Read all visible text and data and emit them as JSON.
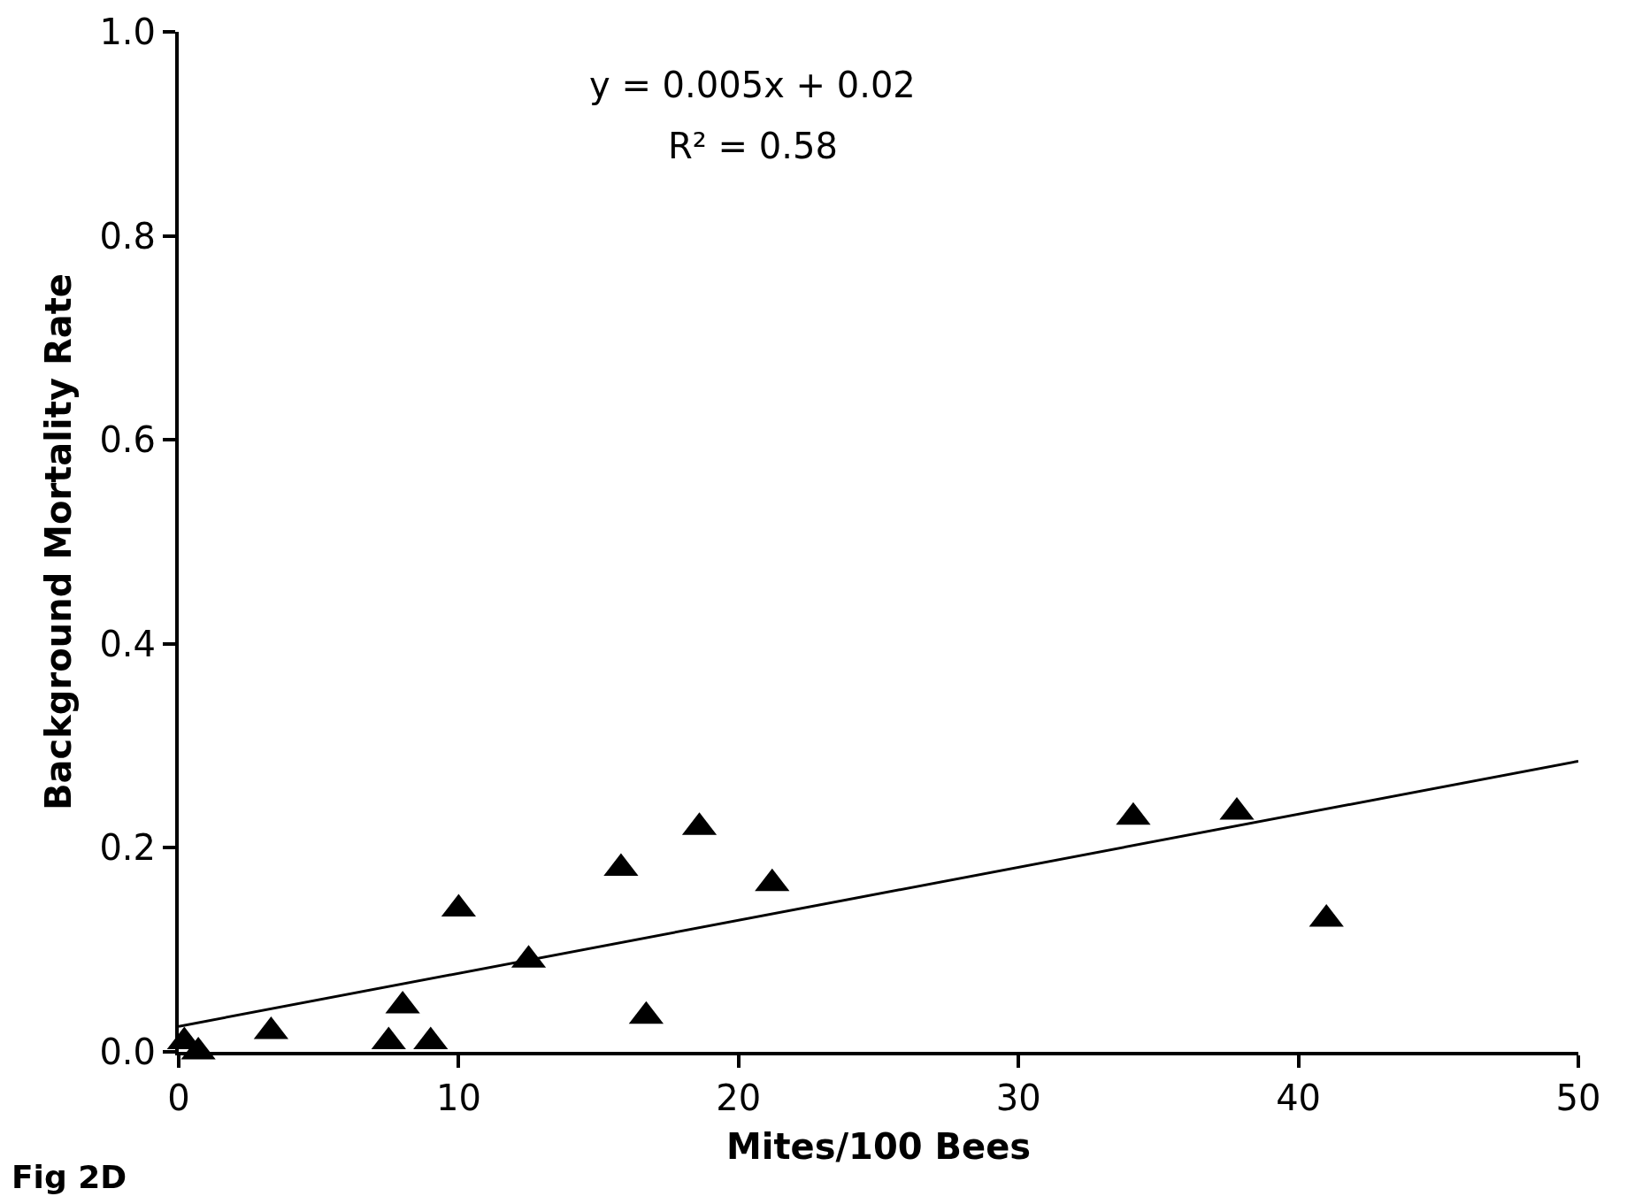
{
  "chart_data": {
    "type": "scatter",
    "xlabel": "Mites/100 Bees",
    "ylabel": "Background Mortality Rate",
    "xlim": [
      0,
      50
    ],
    "xticks": [
      0,
      10,
      20,
      30,
      40,
      50
    ],
    "ylim": [
      0,
      1
    ],
    "yticks": [
      {
        "value": 0,
        "label": "0.0"
      },
      {
        "value": 0.2,
        "label": "0.2"
      },
      {
        "value": 0.4,
        "label": "0.4"
      },
      {
        "value": 0.6,
        "label": "0.6"
      },
      {
        "value": 0.8,
        "label": "0.8"
      },
      {
        "value": 1,
        "label": "1.0"
      }
    ],
    "grid": false,
    "series": [
      {
        "marker": "triangle",
        "color": "#000000",
        "x": [
          0.2,
          0.7,
          3.3,
          7.5,
          8.0,
          9.0,
          10.0,
          12.5,
          15.8,
          16.7,
          18.6,
          21.2,
          34.1,
          37.8,
          41.0
        ],
        "values": [
          0.01,
          0.0,
          0.02,
          0.01,
          0.045,
          0.01,
          0.14,
          0.09,
          0.18,
          0.035,
          0.22,
          0.165,
          0.23,
          0.235,
          0.13
        ]
      },
      {
        "type": "line",
        "marker": "none",
        "line_style": "solid",
        "color": "#000000",
        "x": [
          0,
          50
        ],
        "values": [
          0.025,
          0.285
        ]
      }
    ],
    "annotations": [
      "y = 0.005x + 0.02",
      "R² = 0.58",
      "Fig 2D"
    ]
  }
}
